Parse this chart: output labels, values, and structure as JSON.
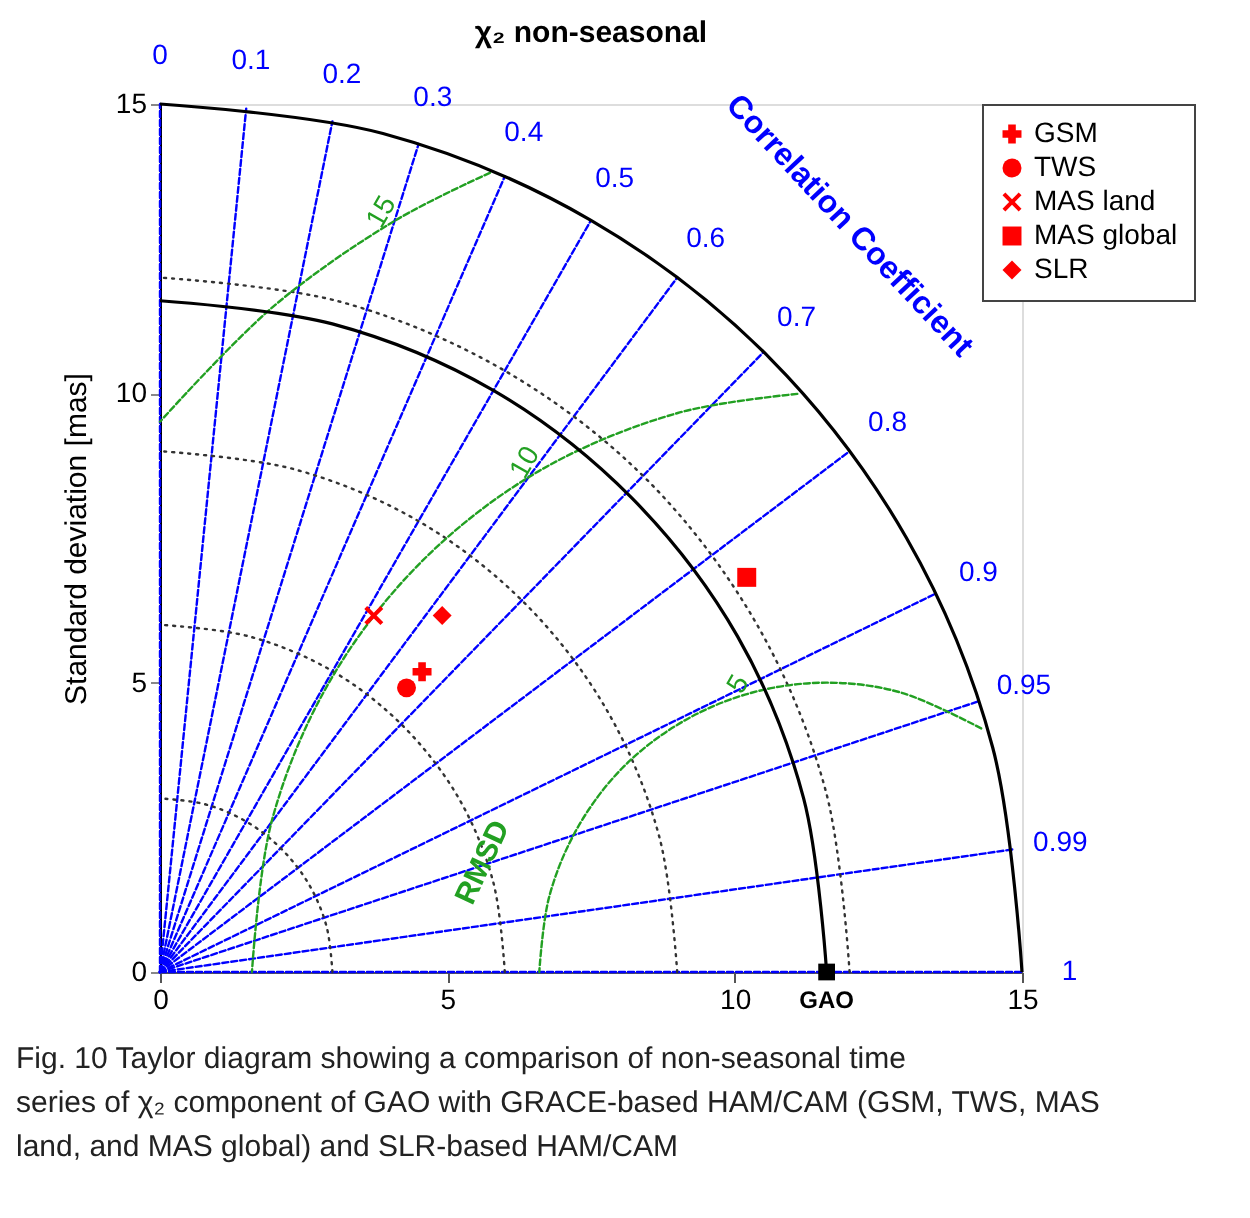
{
  "chart_data": {
    "type": "scatter",
    "title": "χ₂ non-seasonal",
    "ylabel": "Standard deviation [mas]",
    "xlim": [
      0,
      15
    ],
    "ylim": [
      0,
      15
    ],
    "xticks": [
      0,
      5,
      10,
      15
    ],
    "yticks": [
      0,
      5,
      10,
      15
    ],
    "legend": "top right",
    "series": [
      {
        "type": "line",
        "name": "0",
        "color": "#0000ff",
        "line_style": "dashed",
        "x": [
          0,
          0
        ],
        "values": [
          0,
          15
        ]
      },
      {
        "type": "line",
        "name": "0.1",
        "color": "#0000ff",
        "line_style": "dashed",
        "x": [
          0,
          1.5
        ],
        "values": [
          0,
          14.92
        ]
      },
      {
        "type": "line",
        "name": "0.2",
        "color": "#0000ff",
        "line_style": "dashed",
        "x": [
          0,
          3
        ],
        "values": [
          0,
          14.7
        ]
      },
      {
        "type": "line",
        "name": "0.3",
        "color": "#0000ff",
        "line_style": "dashed",
        "x": [
          0,
          4.5
        ],
        "values": [
          0,
          14.31
        ]
      },
      {
        "type": "line",
        "name": "0.4",
        "color": "#0000ff",
        "line_style": "dashed",
        "x": [
          0,
          6
        ],
        "values": [
          0,
          13.75
        ]
      },
      {
        "type": "line",
        "name": "0.5",
        "color": "#0000ff",
        "line_style": "dashed",
        "x": [
          0,
          7.5
        ],
        "values": [
          0,
          12.99
        ]
      },
      {
        "type": "line",
        "name": "0.6",
        "color": "#0000ff",
        "line_style": "dashed",
        "x": [
          0,
          9
        ],
        "values": [
          0,
          12
        ]
      },
      {
        "type": "line",
        "name": "0.7",
        "color": "#0000ff",
        "line_style": "dashed",
        "x": [
          0,
          10.5
        ],
        "values": [
          0,
          10.71
        ]
      },
      {
        "type": "line",
        "name": "0.8",
        "color": "#0000ff",
        "line_style": "dashed",
        "x": [
          0,
          12
        ],
        "values": [
          0,
          9
        ]
      },
      {
        "type": "line",
        "name": "0.9",
        "color": "#0000ff",
        "line_style": "dashed",
        "x": [
          0,
          13.5
        ],
        "values": [
          0,
          6.54
        ]
      },
      {
        "type": "line",
        "name": "0.95",
        "color": "#0000ff",
        "line_style": "dashed",
        "x": [
          0,
          14.25
        ],
        "values": [
          0,
          4.68
        ]
      },
      {
        "type": "line",
        "name": "0.99",
        "color": "#0000ff",
        "line_style": "dashed",
        "x": [
          0,
          14.85
        ],
        "values": [
          0,
          2.12
        ]
      },
      {
        "type": "line",
        "name": "1",
        "color": "#0000ff",
        "line_style": "dashed",
        "x": [
          0,
          15
        ],
        "values": [
          0,
          0
        ]
      },
      {
        "type": "line",
        "color": "#333333",
        "line_style": "dotted",
        "x": [
          3,
          2.9,
          2.6,
          2.12,
          1.5,
          0.78,
          0
        ],
        "values": [
          0,
          0.78,
          1.5,
          2.12,
          2.6,
          2.9,
          3
        ]
      },
      {
        "type": "line",
        "color": "#333333",
        "line_style": "dotted",
        "x": [
          6,
          5.8,
          5.2,
          4.24,
          3,
          1.55,
          0
        ],
        "values": [
          0,
          1.55,
          3,
          4.24,
          5.2,
          5.8,
          6
        ]
      },
      {
        "type": "line",
        "color": "#333333",
        "line_style": "dotted",
        "x": [
          9,
          8.69,
          7.79,
          6.36,
          4.5,
          2.33,
          0
        ],
        "values": [
          0,
          2.33,
          4.5,
          6.36,
          7.79,
          8.69,
          9
        ]
      },
      {
        "type": "line",
        "color": "#333333",
        "line_style": "dotted",
        "x": [
          12,
          11.59,
          10.39,
          8.49,
          6,
          3.11,
          0
        ],
        "values": [
          0,
          3.11,
          6,
          8.49,
          10.39,
          11.59,
          12
        ]
      },
      {
        "type": "line",
        "color": "#000000",
        "line_style": "solid",
        "x": [
          11.6,
          11.2,
          10.05,
          8.2,
          5.8,
          3.0,
          0
        ],
        "values": [
          0,
          3.0,
          5.8,
          8.2,
          10.05,
          11.2,
          11.6
        ]
      },
      {
        "type": "line",
        "color": "#000000",
        "line_style": "solid",
        "x": [
          15,
          14.49,
          12.99,
          10.61,
          7.5,
          3.88,
          0
        ],
        "values": [
          0,
          3.88,
          7.5,
          10.61,
          12.99,
          14.49,
          15
        ]
      },
      {
        "type": "line",
        "name": "5",
        "color": "#22a022",
        "line_style": "dashed",
        "x": [
          14.29,
          12.89,
          11.6,
          10.31,
          9.1,
          8.06,
          7.27,
          6.77,
          6.6
        ],
        "values": [
          4.21,
          4.83,
          5,
          4.83,
          4.33,
          3.54,
          2.5,
          1.29,
          0
        ]
      },
      {
        "type": "line",
        "name": "10",
        "color": "#22a022",
        "line_style": "dashed",
        "x": [
          11.09,
          9.01,
          6.6,
          4.53,
          2.94,
          1.94,
          1.6
        ],
        "values": [
          9.99,
          9.66,
          8.66,
          7.07,
          5,
          2.59,
          0
        ]
      },
      {
        "type": "line",
        "name": "15",
        "color": "#22a022",
        "line_style": "dashed",
        "x": [
          5.74,
          4.1,
          1.96,
          0
        ],
        "values": [
          13.81,
          12.99,
          11.49,
          9.51
        ]
      },
      {
        "name": "GSM",
        "color": "#ff0000",
        "marker": "cross",
        "x": [
          4.56
        ],
        "values": [
          5.19
        ]
      },
      {
        "name": "TWS",
        "color": "#ff0000",
        "marker": "circle",
        "x": [
          4.29
        ],
        "values": [
          4.91
        ]
      },
      {
        "name": "MAS land",
        "color": "#ff0000",
        "marker": "x",
        "x": [
          3.72
        ],
        "values": [
          6.16
        ]
      },
      {
        "name": "MAS global",
        "color": "#ff0000",
        "marker": "square",
        "x": [
          10.21
        ],
        "values": [
          6.82
        ]
      },
      {
        "name": "SLR",
        "color": "#ff0000",
        "marker": "diamond",
        "x": [
          4.91
        ],
        "values": [
          6.16
        ]
      },
      {
        "color": "#000000",
        "marker": "square",
        "x": [
          11.6
        ],
        "values": [
          0
        ]
      }
    ],
    "annotations": [
      "Correlation Coefficient",
      {
        "text": "RMSD",
        "x": 5.6,
        "y": 1.9
      },
      {
        "text": "GAO",
        "x": 11.6,
        "y": 0
      },
      "Fig. 10 Taylor diagram showing a comparison of non-seasonal time series of χ₂ component of GAO with GRACE-based HAM/CAM (GSM, TWS, MAS land, and MAS global) and SLR-based HAM/CAM"
    ]
  }
}
